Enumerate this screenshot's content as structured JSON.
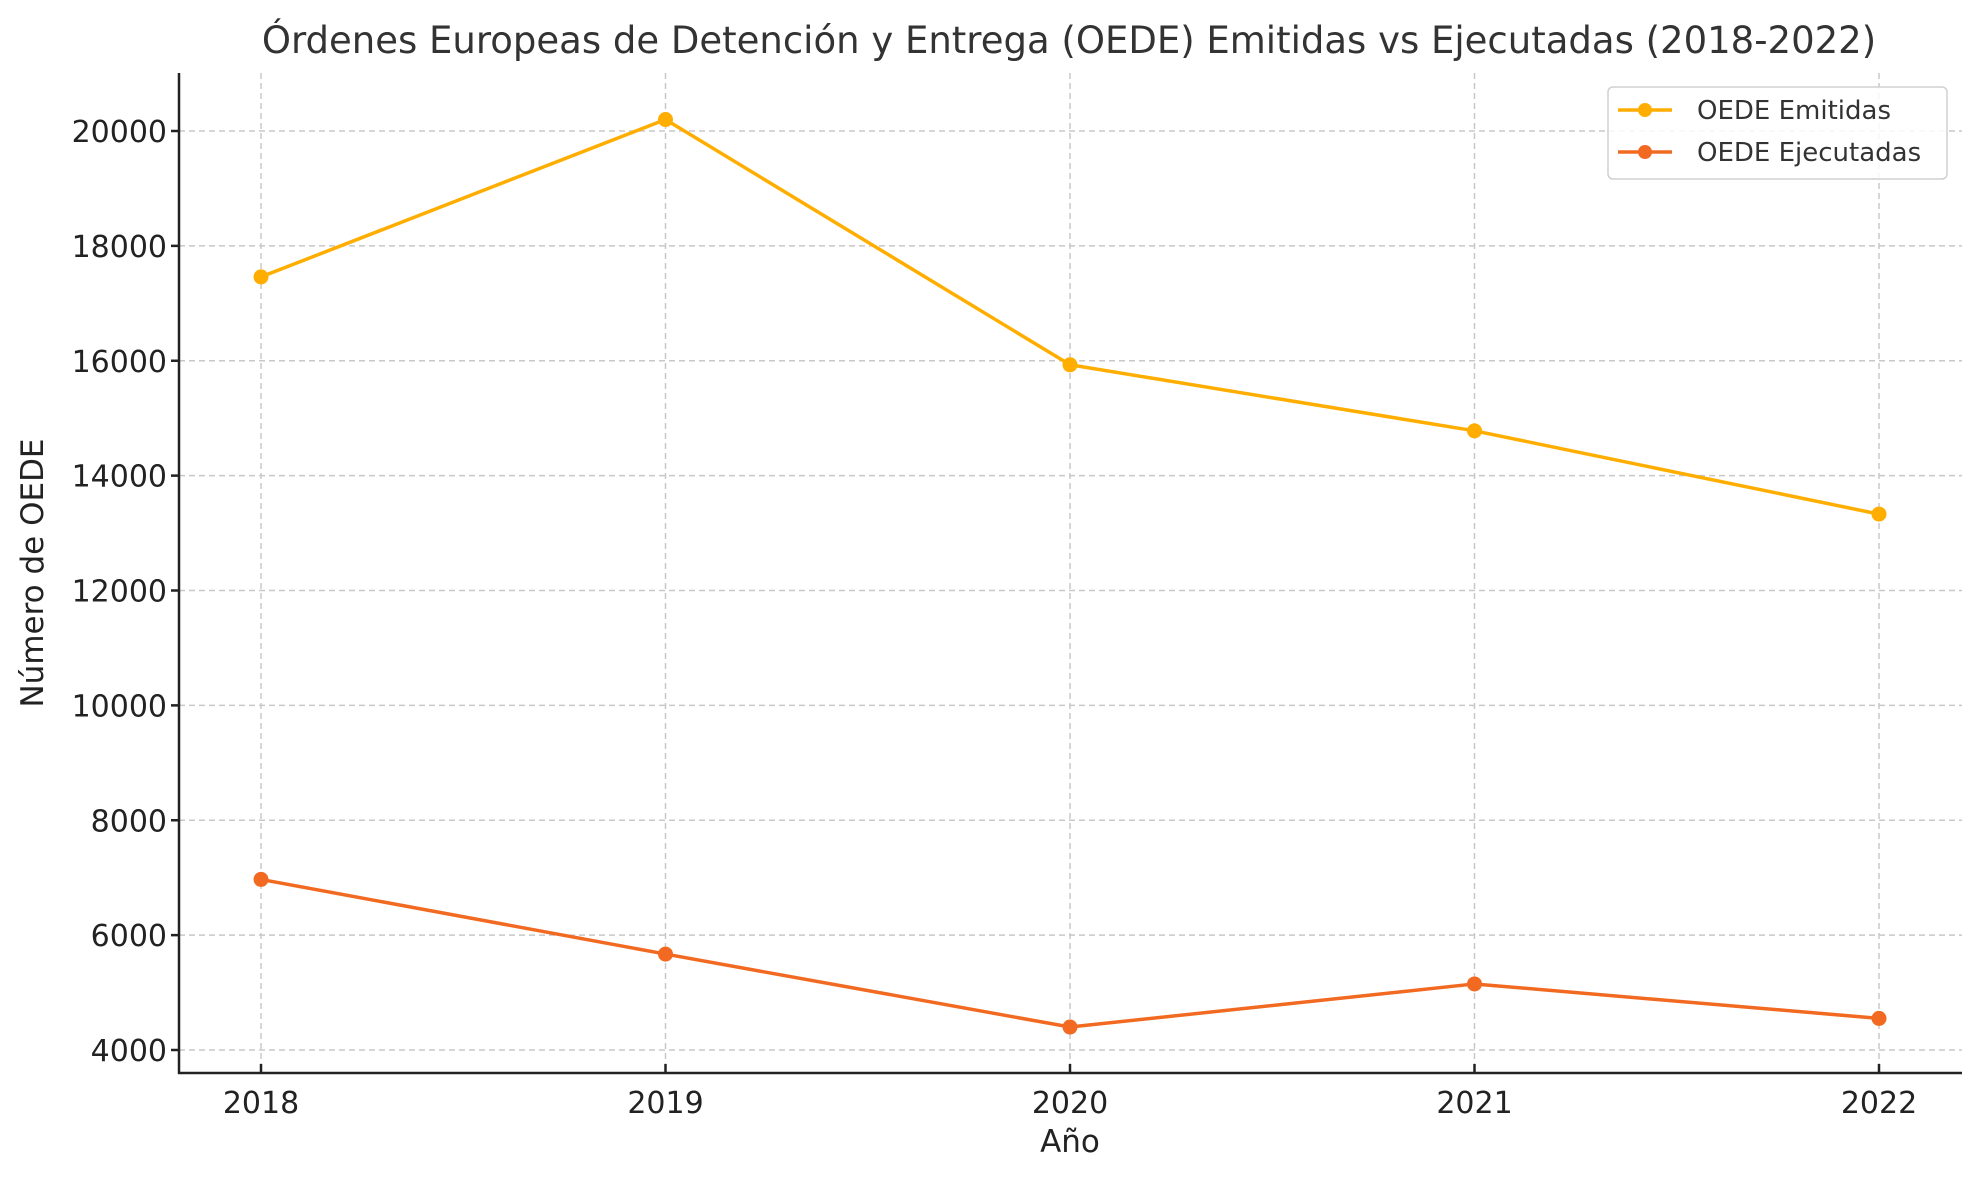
{
  "chart_data": {
    "type": "line",
    "title": "Órdenes Europeas de Detención y Entrega (OEDE) Emitidas vs Ejecutadas (2018-2022)",
    "xlabel": "Año",
    "ylabel": "Número de OEDE",
    "x": [
      2018,
      2019,
      2020,
      2021,
      2022
    ],
    "x_tick_labels": [
      "2018",
      "2019",
      "2020",
      "2021",
      "2022"
    ],
    "y_ticks": [
      4000,
      6000,
      8000,
      10000,
      12000,
      14000,
      16000,
      18000,
      20000
    ],
    "y_tick_labels": [
      "4000",
      "6000",
      "8000",
      "10000",
      "12000",
      "14000",
      "16000",
      "18000",
      "20000"
    ],
    "ylim": [
      3600,
      21000
    ],
    "xlim": [
      2017.8,
      2022.2
    ],
    "grid": true,
    "legend_position": "top-right",
    "series": [
      {
        "name": "OEDE Emitidas",
        "color": "#FFAE00",
        "marker": "circle",
        "values": [
          17460,
          20200,
          15930,
          14780,
          13330
        ]
      },
      {
        "name": "OEDE Ejecutadas",
        "color": "#F26A21",
        "marker": "circle",
        "values": [
          6970,
          5670,
          4400,
          5150,
          4550
        ]
      }
    ]
  }
}
